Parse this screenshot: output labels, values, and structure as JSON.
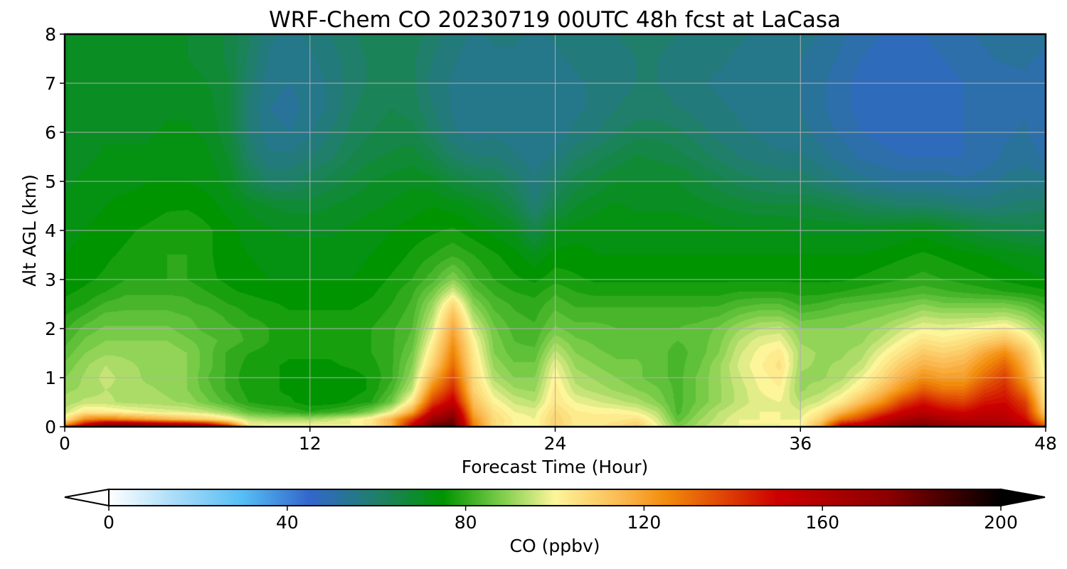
{
  "chart_data": {
    "type": "heatmap",
    "title": "WRF-Chem CO  20230719 00UTC 48h fcst at LaCasa",
    "xlabel": "Forecast Time (Hour)",
    "ylabel": "Alt AGL (km)",
    "xlim": [
      0,
      48
    ],
    "ylim": [
      0,
      8
    ],
    "x_ticks": [
      "0",
      "12",
      "24",
      "36",
      "48"
    ],
    "y_ticks": [
      "0",
      "1",
      "2",
      "3",
      "4",
      "5",
      "6",
      "7",
      "8"
    ],
    "grid": true,
    "colorbar": {
      "label": "CO  (ppbv)",
      "range": [
        0,
        200
      ],
      "ticks": [
        "0",
        "40",
        "80",
        "120",
        "160",
        "200"
      ],
      "extend": "both",
      "colors": [
        {
          "value": 0,
          "color": "#ffffff"
        },
        {
          "value": 15,
          "color": "#a8dcf8"
        },
        {
          "value": 30,
          "color": "#56bdf5"
        },
        {
          "value": 45,
          "color": "#3267cb"
        },
        {
          "value": 60,
          "color": "#1f7f6a"
        },
        {
          "value": 75,
          "color": "#009400"
        },
        {
          "value": 88,
          "color": "#7ccd4a"
        },
        {
          "value": 100,
          "color": "#fdf59a"
        },
        {
          "value": 115,
          "color": "#fbb850"
        },
        {
          "value": 125,
          "color": "#f28b0a"
        },
        {
          "value": 150,
          "color": "#cc0000"
        },
        {
          "value": 175,
          "color": "#8a0000"
        },
        {
          "value": 200,
          "color": "#000000"
        }
      ]
    },
    "hours": [
      0,
      1,
      2,
      3,
      4,
      5,
      6,
      7,
      8,
      9,
      10,
      11,
      12,
      13,
      14,
      15,
      16,
      17,
      18,
      19,
      20,
      21,
      22,
      23,
      24,
      25,
      26,
      27,
      28,
      29,
      30,
      31,
      32,
      33,
      34,
      35,
      36,
      37,
      38,
      39,
      40,
      41,
      42,
      43,
      44,
      45,
      46,
      47,
      48
    ],
    "altitudes_km": [
      0,
      0.05,
      0.15,
      0.3,
      0.5,
      0.75,
      1.0,
      1.25,
      1.5,
      1.75,
      2.0,
      2.25,
      2.5,
      2.75,
      3.0,
      3.5,
      4.0,
      4.5,
      5.0,
      5.5,
      6.0,
      6.5,
      7.0,
      7.5,
      8.0
    ],
    "co_ppbv": [
      [
        150,
        168,
        185,
        185,
        185,
        180,
        178,
        172,
        160,
        120,
        100,
        100,
        100,
        100,
        100,
        104,
        120,
        155,
        190,
        190,
        130,
        110,
        102,
        100,
        112,
        104,
        104,
        108,
        112,
        100,
        90,
        94,
        98,
        100,
        100,
        100,
        102,
        118,
        158,
        162,
        172,
        180,
        180,
        175,
        170,
        168,
        165,
        160,
        150
      ],
      [
        120,
        150,
        168,
        170,
        165,
        160,
        158,
        150,
        130,
        100,
        100,
        100,
        100,
        100,
        100,
        104,
        118,
        150,
        180,
        185,
        128,
        108,
        102,
        100,
        110,
        104,
        104,
        106,
        110,
        100,
        88,
        93,
        97,
        100,
        100,
        100,
        101,
        116,
        148,
        155,
        165,
        175,
        178,
        172,
        168,
        166,
        164,
        158,
        130
      ],
      [
        104,
        126,
        130,
        126,
        122,
        118,
        114,
        110,
        104,
        96,
        94,
        94,
        94,
        96,
        100,
        104,
        118,
        140,
        170,
        180,
        125,
        108,
        102,
        100,
        110,
        104,
        104,
        104,
        106,
        98,
        86,
        92,
        96,
        100,
        100,
        100,
        100,
        110,
        130,
        140,
        155,
        165,
        170,
        165,
        160,
        162,
        160,
        150,
        120
      ],
      [
        96,
        105,
        104,
        102,
        100,
        99,
        98,
        96,
        92,
        86,
        84,
        82,
        80,
        82,
        84,
        90,
        100,
        120,
        155,
        170,
        120,
        106,
        100,
        99,
        108,
        103,
        102,
        102,
        100,
        95,
        84,
        90,
        95,
        98,
        100,
        100,
        98,
        104,
        116,
        128,
        140,
        152,
        158,
        152,
        150,
        155,
        155,
        145,
        110
      ],
      [
        93,
        96,
        96,
        94,
        94,
        93,
        92,
        88,
        84,
        80,
        78,
        78,
        76,
        76,
        78,
        80,
        88,
        105,
        140,
        155,
        115,
        102,
        97,
        95,
        105,
        100,
        98,
        96,
        94,
        90,
        84,
        88,
        92,
        96,
        99,
        100,
        95,
        98,
        104,
        115,
        125,
        140,
        148,
        142,
        140,
        148,
        150,
        140,
        105
      ],
      [
        92,
        93,
        95,
        94,
        93,
        92,
        90,
        86,
        82,
        79,
        78,
        77,
        76,
        76,
        76,
        78,
        84,
        96,
        128,
        145,
        110,
        98,
        93,
        92,
        104,
        96,
        94,
        92,
        90,
        88,
        84,
        88,
        92,
        96,
        100,
        102,
        92,
        94,
        98,
        105,
        115,
        125,
        135,
        130,
        130,
        140,
        145,
        130,
        102
      ],
      [
        90,
        93,
        96,
        94,
        92,
        92,
        90,
        85,
        82,
        78,
        78,
        77,
        76,
        76,
        76,
        78,
        82,
        92,
        118,
        138,
        108,
        94,
        90,
        90,
        102,
        94,
        92,
        90,
        88,
        86,
        84,
        88,
        92,
        97,
        101,
        104,
        92,
        92,
        94,
        100,
        108,
        118,
        125,
        122,
        122,
        132,
        140,
        122,
        100
      ],
      [
        88,
        92,
        95,
        93,
        92,
        91,
        90,
        86,
        82,
        79,
        78,
        77,
        77,
        77,
        78,
        79,
        82,
        90,
        110,
        132,
        106,
        92,
        88,
        88,
        100,
        92,
        90,
        88,
        88,
        86,
        84,
        87,
        92,
        98,
        102,
        106,
        93,
        92,
        93,
        96,
        104,
        112,
        118,
        116,
        118,
        126,
        134,
        118,
        98
      ],
      [
        86,
        90,
        92,
        92,
        92,
        92,
        90,
        86,
        82,
        80,
        79,
        78,
        78,
        78,
        79,
        80,
        82,
        88,
        106,
        128,
        104,
        90,
        86,
        86,
        96,
        90,
        88,
        87,
        87,
        86,
        84,
        86,
        90,
        97,
        101,
        104,
        94,
        92,
        92,
        94,
        100,
        106,
        112,
        110,
        112,
        120,
        126,
        114,
        96
      ],
      [
        84,
        88,
        90,
        90,
        90,
        90,
        88,
        86,
        84,
        82,
        80,
        79,
        78,
        78,
        79,
        80,
        82,
        86,
        102,
        124,
        102,
        89,
        85,
        84,
        92,
        88,
        87,
        86,
        86,
        86,
        85,
        86,
        89,
        95,
        99,
        100,
        92,
        91,
        91,
        92,
        96,
        101,
        106,
        104,
        106,
        110,
        114,
        106,
        94
      ],
      [
        82,
        86,
        88,
        88,
        88,
        88,
        86,
        84,
        83,
        82,
        80,
        79,
        78,
        78,
        79,
        80,
        82,
        85,
        98,
        120,
        98,
        88,
        84,
        83,
        88,
        86,
        86,
        85,
        85,
        85,
        85,
        86,
        88,
        92,
        95,
        96,
        90,
        90,
        90,
        91,
        93,
        97,
        100,
        99,
        100,
        102,
        104,
        98,
        90
      ],
      [
        80,
        83,
        86,
        86,
        86,
        86,
        85,
        84,
        82,
        80,
        79,
        78,
        78,
        78,
        78,
        79,
        81,
        84,
        95,
        115,
        94,
        86,
        83,
        82,
        86,
        84,
        84,
        84,
        84,
        84,
        84,
        84,
        85,
        88,
        90,
        90,
        86,
        87,
        88,
        89,
        90,
        92,
        95,
        94,
        94,
        94,
        95,
        92,
        86
      ],
      [
        78,
        80,
        83,
        84,
        84,
        84,
        83,
        82,
        80,
        79,
        78,
        77,
        77,
        77,
        77,
        78,
        80,
        83,
        92,
        108,
        90,
        84,
        82,
        81,
        84,
        82,
        82,
        82,
        82,
        82,
        82,
        82,
        82,
        84,
        85,
        85,
        82,
        83,
        85,
        86,
        87,
        88,
        90,
        88,
        88,
        88,
        88,
        86,
        82
      ],
      [
        77,
        78,
        80,
        82,
        82,
        82,
        82,
        80,
        78,
        77,
        76,
        76,
        76,
        76,
        76,
        77,
        79,
        82,
        88,
        98,
        86,
        82,
        80,
        79,
        82,
        80,
        79,
        79,
        79,
        79,
        79,
        79,
        79,
        80,
        80,
        80,
        79,
        79,
        80,
        81,
        82,
        83,
        84,
        83,
        82,
        81,
        80,
        79,
        78
      ],
      [
        76,
        77,
        78,
        80,
        80,
        80,
        80,
        78,
        77,
        76,
        75,
        75,
        75,
        75,
        75,
        76,
        78,
        80,
        84,
        90,
        83,
        80,
        78,
        77,
        79,
        78,
        77,
        77,
        77,
        77,
        77,
        77,
        77,
        77,
        77,
        77,
        77,
        77,
        77,
        78,
        79,
        80,
        81,
        80,
        79,
        78,
        77,
        76,
        75
      ],
      [
        75,
        76,
        77,
        78,
        79,
        80,
        80,
        78,
        76,
        75,
        74,
        74,
        74,
        74,
        74,
        75,
        76,
        78,
        80,
        82,
        80,
        78,
        76,
        73,
        76,
        76,
        75,
        75,
        75,
        75,
        75,
        75,
        75,
        75,
        75,
        75,
        75,
        75,
        75,
        75,
        76,
        77,
        78,
        77,
        76,
        75,
        74,
        73,
        72
      ],
      [
        74,
        75,
        76,
        77,
        78,
        79,
        80,
        78,
        76,
        74,
        73,
        72,
        72,
        72,
        73,
        74,
        75,
        76,
        77,
        78,
        76,
        74,
        72,
        66,
        72,
        74,
        74,
        74,
        74,
        74,
        74,
        74,
        73,
        73,
        73,
        73,
        72,
        72,
        72,
        72,
        72,
        73,
        74,
        72,
        70,
        68,
        67,
        66,
        66
      ],
      [
        73,
        74,
        75,
        76,
        76,
        77,
        77,
        76,
        74,
        72,
        70,
        69,
        69,
        70,
        71,
        72,
        73,
        74,
        75,
        74,
        72,
        70,
        66,
        60,
        66,
        70,
        72,
        73,
        72,
        72,
        72,
        71,
        70,
        69,
        68,
        68,
        68,
        67,
        66,
        64,
        63,
        62,
        62,
        61,
        60,
        59,
        60,
        61,
        62
      ],
      [
        72,
        73,
        74,
        74,
        75,
        75,
        75,
        74,
        72,
        66,
        62,
        62,
        64,
        66,
        68,
        70,
        71,
        72,
        71,
        68,
        66,
        65,
        62,
        58,
        62,
        66,
        68,
        70,
        70,
        70,
        70,
        68,
        66,
        64,
        63,
        62,
        62,
        60,
        58,
        56,
        55,
        54,
        54,
        54,
        53,
        54,
        56,
        57,
        56
      ],
      [
        72,
        72,
        73,
        73,
        73,
        74,
        74,
        73,
        70,
        62,
        58,
        58,
        60,
        62,
        65,
        67,
        68,
        69,
        66,
        62,
        60,
        60,
        58,
        56,
        58,
        62,
        64,
        66,
        68,
        67,
        66,
        64,
        62,
        60,
        59,
        58,
        58,
        56,
        54,
        52,
        51,
        50,
        50,
        50,
        50,
        51,
        53,
        54,
        52
      ],
      [
        71,
        71,
        72,
        72,
        72,
        73,
        73,
        72,
        68,
        60,
        56,
        55,
        57,
        60,
        63,
        65,
        66,
        66,
        62,
        58,
        56,
        57,
        56,
        55,
        56,
        58,
        60,
        62,
        64,
        64,
        63,
        61,
        59,
        58,
        57,
        56,
        56,
        54,
        52,
        50,
        49,
        48,
        48,
        49,
        50,
        50,
        52,
        53,
        50
      ],
      [
        70,
        70,
        71,
        71,
        71,
        72,
        72,
        71,
        68,
        60,
        55,
        54,
        56,
        58,
        62,
        64,
        65,
        64,
        60,
        57,
        55,
        56,
        55,
        55,
        56,
        57,
        58,
        60,
        61,
        61,
        60,
        59,
        58,
        57,
        56,
        55,
        55,
        53,
        51,
        49,
        48,
        48,
        48,
        49,
        50,
        50,
        51,
        52,
        50
      ],
      [
        70,
        70,
        70,
        70,
        71,
        71,
        71,
        70,
        68,
        61,
        56,
        55,
        56,
        58,
        61,
        63,
        64,
        63,
        59,
        57,
        55,
        56,
        56,
        55,
        56,
        57,
        58,
        59,
        60,
        60,
        59,
        58,
        57,
        56,
        56,
        55,
        55,
        53,
        51,
        49,
        48,
        48,
        48,
        49,
        50,
        51,
        51,
        52,
        50
      ],
      [
        70,
        70,
        70,
        70,
        70,
        70,
        70,
        69,
        67,
        62,
        57,
        56,
        57,
        59,
        61,
        63,
        64,
        63,
        60,
        58,
        56,
        57,
        57,
        56,
        57,
        58,
        59,
        59,
        60,
        60,
        59,
        58,
        58,
        57,
        56,
        56,
        55,
        54,
        52,
        50,
        49,
        49,
        49,
        50,
        51,
        52,
        53,
        53,
        52
      ],
      [
        70,
        70,
        70,
        70,
        70,
        70,
        70,
        69,
        67,
        63,
        58,
        57,
        58,
        60,
        62,
        64,
        65,
        64,
        61,
        59,
        57,
        58,
        58,
        57,
        58,
        59,
        60,
        60,
        61,
        61,
        60,
        59,
        59,
        58,
        57,
        57,
        56,
        55,
        53,
        51,
        50,
        50,
        50,
        51,
        52,
        53,
        54,
        54,
        53
      ]
    ]
  }
}
